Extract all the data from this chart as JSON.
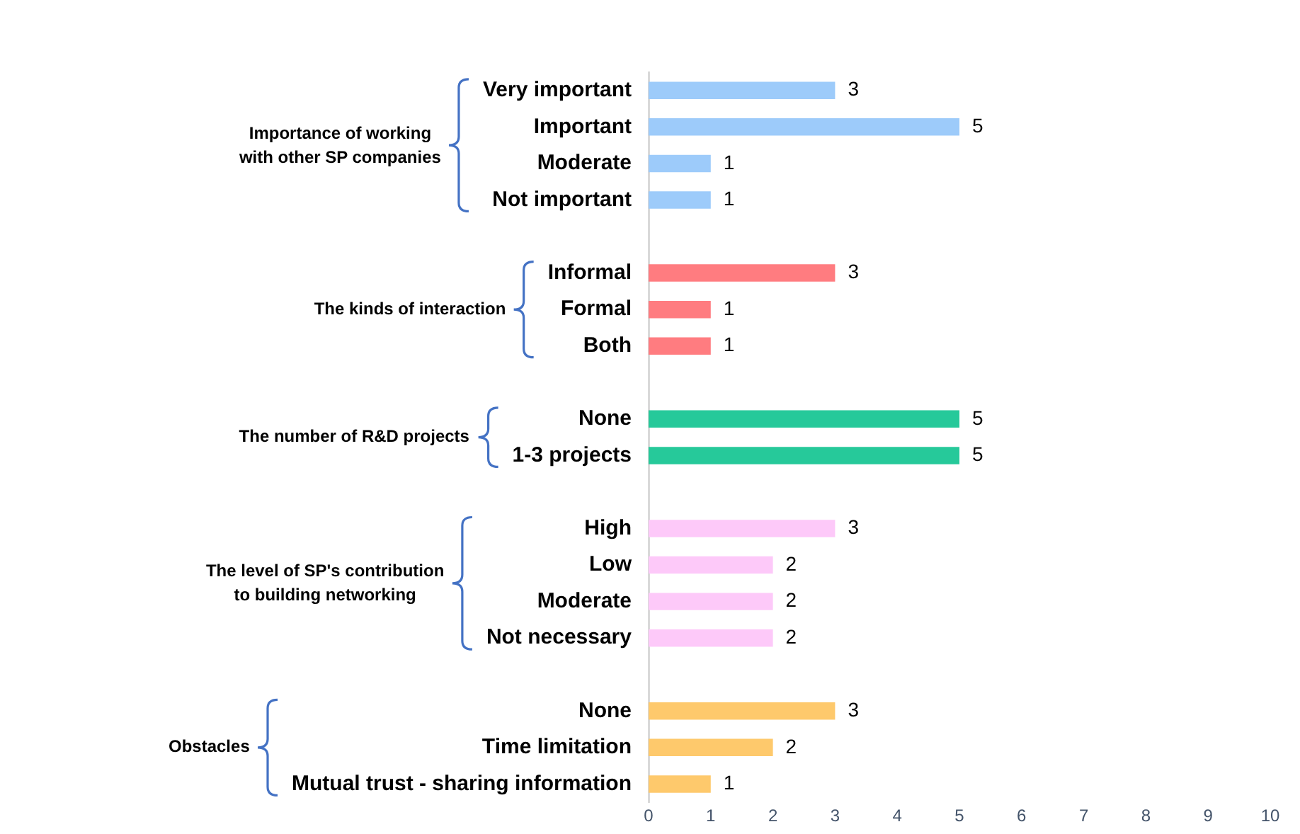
{
  "chart_data": {
    "type": "bar",
    "orientation": "horizontal",
    "categories": [
      "Very important",
      "Important",
      "Moderate",
      "Not important",
      null,
      "Informal",
      "Formal",
      "Both",
      null,
      "None",
      "1-3 projects",
      null,
      "High",
      "Low",
      "Moderate",
      "Not necessary",
      null,
      "None",
      "Time limitation",
      "Mutual trust - sharing information"
    ],
    "values": [
      3,
      5,
      1,
      1,
      null,
      3,
      1,
      1,
      null,
      5,
      5,
      null,
      3,
      2,
      2,
      2,
      null,
      3,
      2,
      1
    ],
    "colors": [
      "#9dcbfa",
      "#9dcbfa",
      "#9dcbfa",
      "#9dcbfa",
      null,
      "#ff7c80",
      "#ff7c80",
      "#ff7c80",
      null,
      "#26c99a",
      "#26c99a",
      null,
      "#fdc9f9",
      "#fdc9f9",
      "#fdc9f9",
      "#fdc9f9",
      null,
      "#fec96c",
      "#fec96c",
      "#fec96c"
    ],
    "xlim": [
      0,
      10
    ],
    "xticks": [
      0,
      1,
      2,
      3,
      4,
      5,
      6,
      7,
      8,
      9,
      10
    ],
    "grid": false,
    "legend": false,
    "data_labels": true,
    "annotations": [
      "Importance of working\nwith other SP companies",
      "The kinds of interaction",
      "The number of R&D projects",
      "The level of SP's contribution\nto building networking",
      "Obstacles"
    ]
  }
}
